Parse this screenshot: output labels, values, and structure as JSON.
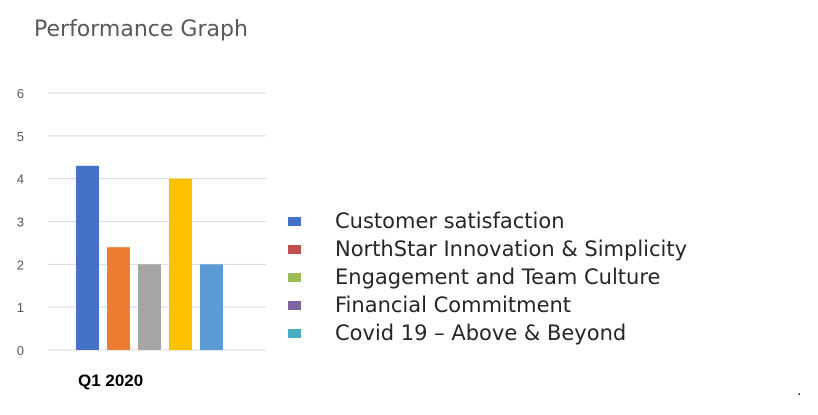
{
  "chart_data": {
    "type": "bar",
    "title": "Performance Graph",
    "categories": [
      "Q1 2020"
    ],
    "series": [
      {
        "name": "Customer satisfaction",
        "values": [
          4.3
        ],
        "bar_color": "#4472c4",
        "legend_color": "#4472c4"
      },
      {
        "name": "NorthStar Innovation & Simplicity",
        "values": [
          2.4
        ],
        "bar_color": "#ed7d31",
        "legend_color": "#c0504d"
      },
      {
        "name": "Engagement and Team Culture",
        "values": [
          2.0
        ],
        "bar_color": "#a5a5a5",
        "legend_color": "#9bbb59"
      },
      {
        "name": "Financial Commitment",
        "values": [
          4.0
        ],
        "bar_color": "#ffc000",
        "legend_color": "#8064a2"
      },
      {
        "name": "Covid 19 – Above & Beyond",
        "values": [
          2.0
        ],
        "bar_color": "#5b9bd5",
        "legend_color": "#4bacc6"
      }
    ],
    "ylim": [
      0,
      6
    ],
    "yticks": [
      "0",
      "1",
      "2",
      "3",
      "4",
      "5",
      "6"
    ],
    "grid": true,
    "legend_position": "right",
    "xlabel": "",
    "ylabel": ""
  },
  "footer_mark": "."
}
